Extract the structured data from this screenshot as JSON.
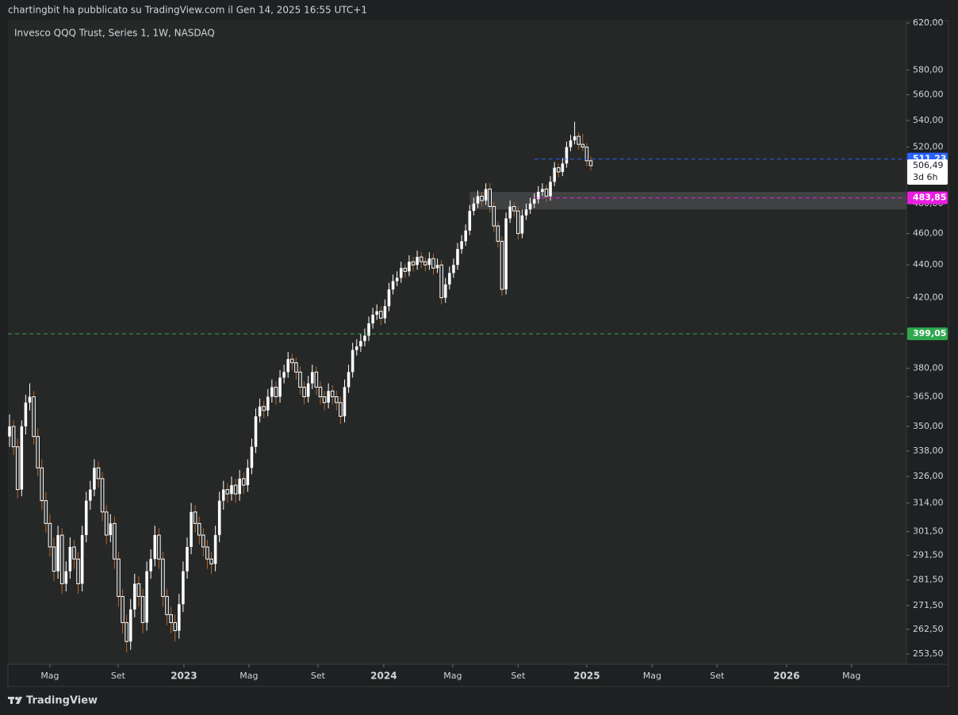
{
  "chart_data": {
    "type": "candlestick",
    "attribution": "chartingbit ha pubblicato su TradingView.com il Gen 14, 2025 16:55 UTC+1",
    "title": "Invesco QQQ Trust, Series 1, 1W, NASDAQ",
    "footer": "TradingView",
    "log_scale": true,
    "up_color": "#ffffff",
    "down_color": "#ffffff",
    "down_wick_color": "#b5682a",
    "background": "#262727",
    "ylim": [
      249.8,
      622.1
    ],
    "yticks": [
      {
        "value": 620,
        "label": "620,00"
      },
      {
        "value": 580,
        "label": "580,00"
      },
      {
        "value": 560,
        "label": "560,00"
      },
      {
        "value": 540,
        "label": "540,00"
      },
      {
        "value": 520,
        "label": "520,00"
      },
      {
        "value": 480,
        "label": "480,00"
      },
      {
        "value": 460,
        "label": "460,00"
      },
      {
        "value": 440,
        "label": "440,00"
      },
      {
        "value": 420,
        "label": "420,00"
      },
      {
        "value": 380,
        "label": "380,00"
      },
      {
        "value": 365,
        "label": "365,00"
      },
      {
        "value": 350,
        "label": "350,00"
      },
      {
        "value": 338,
        "label": "338,00"
      },
      {
        "value": 326,
        "label": "326,00"
      },
      {
        "value": 314,
        "label": "314,00"
      },
      {
        "value": 301.5,
        "label": "301,50"
      },
      {
        "value": 291.5,
        "label": "291,50"
      },
      {
        "value": 281.5,
        "label": "281,50"
      },
      {
        "value": 271.5,
        "label": "271,50"
      },
      {
        "value": 262.5,
        "label": "262,50"
      },
      {
        "value": 253.5,
        "label": "253,50"
      }
    ],
    "xlim": [
      -0.4,
      222.2
    ],
    "xticks": [
      {
        "value": 10,
        "label": "Mag"
      },
      {
        "value": 26.9,
        "label": "Set"
      },
      {
        "value": 43.2,
        "label": "2023"
      },
      {
        "value": 59.3,
        "label": "Mag"
      },
      {
        "value": 76.4,
        "label": "Set"
      },
      {
        "value": 92.7,
        "label": "2024"
      },
      {
        "value": 109.8,
        "label": "Mag"
      },
      {
        "value": 126,
        "label": "Set"
      },
      {
        "value": 143,
        "label": "2025"
      },
      {
        "value": 159.2,
        "label": "Mag"
      },
      {
        "value": 175.3,
        "label": "Set"
      },
      {
        "value": 192.5,
        "label": "2026"
      },
      {
        "value": 208.6,
        "label": "Mag"
      }
    ],
    "zone": {
      "from": 476,
      "to": 488,
      "start": 114,
      "color": "#4a4b4c"
    },
    "levels": [
      {
        "value": 511.23,
        "label": "511,23",
        "color": "#2962ff",
        "start": 130,
        "dashed": true
      },
      {
        "value": 483.85,
        "label": "483,85",
        "color": "#e91ee0",
        "start": 130,
        "dashed": true
      },
      {
        "value": 399.05,
        "label": "399,05",
        "color": "#2fa84f",
        "start": -0.4,
        "dashed": true
      }
    ],
    "last": {
      "value": 506.49,
      "label": "506,49",
      "countdown": "3d 6h"
    },
    "candles": [
      [
        345,
        356,
        340,
        350
      ],
      [
        350,
        353,
        336,
        340
      ],
      [
        340,
        344,
        316,
        320
      ],
      [
        320,
        353,
        317,
        350
      ],
      [
        350,
        366,
        346,
        362
      ],
      [
        362,
        372,
        358,
        365
      ],
      [
        365,
        368,
        341,
        345
      ],
      [
        345,
        349,
        326,
        330
      ],
      [
        330,
        334,
        311,
        315
      ],
      [
        315,
        319,
        301,
        305
      ],
      [
        305,
        309,
        291,
        295
      ],
      [
        295,
        299,
        281,
        285
      ],
      [
        285,
        304,
        282,
        300
      ],
      [
        300,
        303,
        276,
        280
      ],
      [
        280,
        289,
        277,
        285
      ],
      [
        285,
        299,
        282,
        295
      ],
      [
        295,
        298,
        286,
        290
      ],
      [
        290,
        293,
        276,
        280
      ],
      [
        280,
        304,
        277,
        300
      ],
      [
        300,
        319,
        297,
        315
      ],
      [
        315,
        324,
        311,
        320
      ],
      [
        320,
        334,
        317,
        330
      ],
      [
        330,
        333,
        321,
        325
      ],
      [
        325,
        328,
        306,
        310
      ],
      [
        310,
        313,
        296,
        300
      ],
      [
        300,
        309,
        297,
        305
      ],
      [
        305,
        308,
        286,
        290
      ],
      [
        290,
        293,
        271,
        275
      ],
      [
        275,
        278,
        261,
        265
      ],
      [
        265,
        268,
        254,
        258
      ],
      [
        258,
        274,
        255,
        270
      ],
      [
        270,
        284,
        267,
        280
      ],
      [
        280,
        283,
        271,
        275
      ],
      [
        275,
        278,
        261,
        265
      ],
      [
        265,
        289,
        262,
        285
      ],
      [
        285,
        294,
        282,
        290
      ],
      [
        290,
        304,
        287,
        300
      ],
      [
        300,
        303,
        286,
        290
      ],
      [
        290,
        293,
        271,
        275
      ],
      [
        275,
        278,
        264,
        268
      ],
      [
        268,
        271,
        261,
        265
      ],
      [
        265,
        268,
        258,
        262
      ],
      [
        262,
        276,
        259,
        272
      ],
      [
        272,
        289,
        269,
        285
      ],
      [
        285,
        299,
        282,
        295
      ],
      [
        295,
        314,
        292,
        310
      ],
      [
        310,
        313,
        301,
        305
      ],
      [
        305,
        308,
        296,
        300
      ],
      [
        300,
        303,
        291,
        295
      ],
      [
        295,
        298,
        286,
        290
      ],
      [
        290,
        293,
        284,
        288
      ],
      [
        288,
        304,
        285,
        300
      ],
      [
        300,
        319,
        297,
        315
      ],
      [
        315,
        324,
        311,
        320
      ],
      [
        320,
        323,
        314,
        318
      ],
      [
        318,
        326,
        315,
        322
      ],
      [
        322,
        325,
        314,
        318
      ],
      [
        318,
        329,
        315,
        325
      ],
      [
        325,
        328,
        318,
        322
      ],
      [
        322,
        334,
        319,
        330
      ],
      [
        330,
        344,
        327,
        340
      ],
      [
        340,
        359,
        337,
        355
      ],
      [
        355,
        364,
        352,
        360
      ],
      [
        360,
        363,
        354,
        358
      ],
      [
        358,
        369,
        355,
        365
      ],
      [
        365,
        374,
        362,
        370
      ],
      [
        370,
        373,
        361,
        365
      ],
      [
        365,
        379,
        362,
        375
      ],
      [
        375,
        382,
        372,
        378
      ],
      [
        378,
        389,
        375,
        385
      ],
      [
        385,
        388,
        379,
        383
      ],
      [
        383,
        386,
        374,
        378
      ],
      [
        378,
        381,
        366,
        370
      ],
      [
        370,
        373,
        361,
        365
      ],
      [
        365,
        376,
        362,
        372
      ],
      [
        372,
        382,
        369,
        378
      ],
      [
        378,
        381,
        366,
        370
      ],
      [
        370,
        373,
        361,
        365
      ],
      [
        365,
        368,
        358,
        362
      ],
      [
        362,
        372,
        359,
        368
      ],
      [
        368,
        371,
        361,
        365
      ],
      [
        365,
        368,
        358,
        362
      ],
      [
        362,
        365,
        351,
        355
      ],
      [
        355,
        374,
        352,
        370
      ],
      [
        370,
        382,
        367,
        378
      ],
      [
        378,
        394,
        375,
        390
      ],
      [
        390,
        396,
        387,
        392
      ],
      [
        392,
        399,
        389,
        395
      ],
      [
        395,
        402,
        392,
        398
      ],
      [
        398,
        409,
        395,
        405
      ],
      [
        405,
        414,
        402,
        410
      ],
      [
        410,
        416,
        407,
        412
      ],
      [
        412,
        415,
        404,
        408
      ],
      [
        408,
        419,
        405,
        415
      ],
      [
        415,
        429,
        412,
        425
      ],
      [
        425,
        434,
        422,
        430
      ],
      [
        430,
        436,
        427,
        432
      ],
      [
        432,
        442,
        429,
        438
      ],
      [
        438,
        441,
        432,
        436
      ],
      [
        436,
        446,
        433,
        442
      ],
      [
        442,
        445,
        436,
        440
      ],
      [
        440,
        449,
        437,
        445
      ],
      [
        445,
        448,
        438,
        442
      ],
      [
        442,
        445,
        436,
        440
      ],
      [
        440,
        448,
        437,
        444
      ],
      [
        444,
        447,
        434,
        438
      ],
      [
        438,
        444,
        435,
        440
      ],
      [
        440,
        443,
        416,
        420
      ],
      [
        420,
        432,
        417,
        428
      ],
      [
        428,
        439,
        425,
        435
      ],
      [
        435,
        444,
        432,
        440
      ],
      [
        440,
        454,
        437,
        450
      ],
      [
        450,
        459,
        447,
        455
      ],
      [
        455,
        466,
        452,
        462
      ],
      [
        462,
        479,
        459,
        475
      ],
      [
        475,
        484,
        472,
        480
      ],
      [
        480,
        489,
        477,
        485
      ],
      [
        485,
        488,
        478,
        482
      ],
      [
        482,
        494,
        479,
        490
      ],
      [
        490,
        494,
        474,
        478
      ],
      [
        478,
        481,
        461,
        465
      ],
      [
        465,
        468,
        451,
        455
      ],
      [
        455,
        458,
        421,
        425
      ],
      [
        425,
        474,
        422,
        470
      ],
      [
        470,
        482,
        467,
        478
      ],
      [
        478,
        481,
        471,
        475
      ],
      [
        475,
        478,
        456,
        460
      ],
      [
        460,
        476,
        457,
        472
      ],
      [
        472,
        480,
        469,
        476
      ],
      [
        476,
        484,
        473,
        480
      ],
      [
        480,
        487,
        477,
        483
      ],
      [
        483,
        492,
        480,
        488
      ],
      [
        488,
        494,
        485,
        490
      ],
      [
        490,
        493,
        481,
        485
      ],
      [
        485,
        499,
        482,
        495
      ],
      [
        495,
        509,
        492,
        505
      ],
      [
        505,
        508,
        498,
        502
      ],
      [
        502,
        512,
        499,
        508
      ],
      [
        508,
        524,
        505,
        520
      ],
      [
        520,
        529,
        517,
        525
      ],
      [
        525,
        539,
        522,
        528
      ],
      [
        528,
        531,
        518,
        522
      ],
      [
        522,
        530,
        517,
        520
      ],
      [
        520,
        523,
        506,
        510
      ],
      [
        510,
        513,
        503,
        506.49
      ]
    ]
  }
}
